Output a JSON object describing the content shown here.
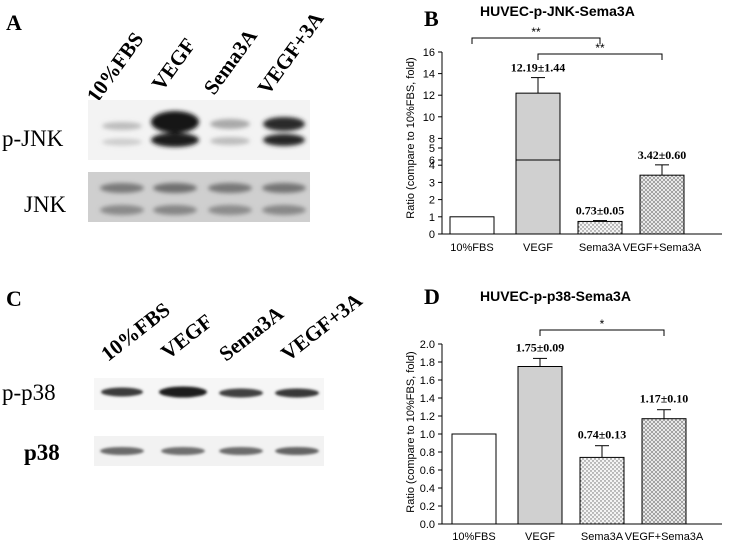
{
  "panel_letters": {
    "a": "A",
    "b": "B",
    "c": "C",
    "d": "D"
  },
  "blot_top": {
    "lanes": [
      "10%FBS",
      "VEGF",
      "Sema3A",
      "VEGF+3A"
    ],
    "rows": [
      "p-JNK",
      "JNK"
    ]
  },
  "blot_bottom": {
    "lanes": [
      "10%FBS",
      "VEGF",
      "Sema3A",
      "VEGF+3A"
    ],
    "rows": [
      "p-p38",
      "p38"
    ]
  },
  "chart_data": [
    {
      "type": "bar",
      "title": "HUVEC-p-JNK-Sema3A",
      "ylabel": "Ratio (compare to 10%FBS, fold)",
      "categories": [
        "10%FBS",
        "VEGF",
        "Sema3A",
        "VEGF+Sema3A"
      ],
      "values": [
        1.0,
        12.19,
        0.73,
        3.42
      ],
      "errors": [
        0.0,
        1.44,
        0.05,
        0.6
      ],
      "data_labels": [
        "",
        "12.19±1.44",
        "0.73±0.05",
        "3.42±0.60"
      ],
      "bar_colors": [
        "#ffffff",
        "#d0d0d0",
        "#e8e8e8",
        "#ececec"
      ],
      "bar_patterns": [
        "none",
        "none",
        "dots",
        "crosshatch"
      ],
      "axis_break": {
        "lower_range": [
          0,
          5
        ],
        "upper_range": [
          6,
          16
        ]
      },
      "yticks_lower": [
        "0",
        "1",
        "2",
        "3",
        "4",
        "5"
      ],
      "yticks_upper": [
        "6",
        "8",
        "10",
        "12",
        "14",
        "16"
      ],
      "significance": [
        {
          "from": 0,
          "to": 2,
          "label": "**"
        },
        {
          "from": 1,
          "to": 3,
          "label": "**"
        }
      ]
    },
    {
      "type": "bar",
      "title": "HUVEC-p-p38-Sema3A",
      "ylabel": "Ratio (compare to 10%FBS, fold)",
      "categories": [
        "10%FBS",
        "VEGF",
        "Sema3A",
        "VEGF+Sema3A"
      ],
      "values": [
        1.0,
        1.75,
        0.74,
        1.17
      ],
      "errors": [
        0.0,
        0.09,
        0.13,
        0.1
      ],
      "data_labels": [
        "",
        "1.75±0.09",
        "0.74±0.13",
        "1.17±0.10"
      ],
      "bar_colors": [
        "#ffffff",
        "#d0d0d0",
        "#e8e8e8",
        "#ececec"
      ],
      "bar_patterns": [
        "none",
        "none",
        "dots",
        "crosshatch"
      ],
      "ylim": [
        0,
        2.0
      ],
      "yticks": [
        "0.0",
        "0.2",
        "0.4",
        "0.6",
        "0.8",
        "1.0",
        "1.2",
        "1.4",
        "1.6",
        "1.8",
        "2.0"
      ],
      "significance": [
        {
          "from": 1,
          "to": 3,
          "label": "*"
        }
      ]
    }
  ]
}
